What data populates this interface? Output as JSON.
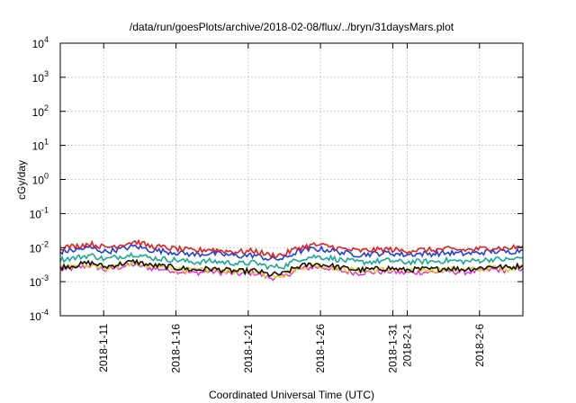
{
  "chart_data": {
    "type": "line",
    "title": "/data/run/goesPlots/archive/2018-02-08/flux/../bryn/31daysMars.plot",
    "xlabel": "Coordinated Universal Time (UTC)",
    "ylabel": "cGy/day",
    "yscale": "log",
    "ylim": [
      0.0001,
      10000
    ],
    "y_ticks": [
      {
        "base": "10",
        "exp": "-4"
      },
      {
        "base": "10",
        "exp": "-3"
      },
      {
        "base": "10",
        "exp": "-2"
      },
      {
        "base": "10",
        "exp": "-1"
      },
      {
        "base": "10",
        "exp": "0"
      },
      {
        "base": "10",
        "exp": "1"
      },
      {
        "base": "10",
        "exp": "2"
      },
      {
        "base": "10",
        "exp": "3"
      },
      {
        "base": "10",
        "exp": "4"
      }
    ],
    "xlim": [
      "2018-01-08",
      "2018-02-09"
    ],
    "x_ticks": [
      "2018-1-11",
      "2018-1-16",
      "2018-1-21",
      "2018-1-26",
      "2018-1-31",
      "2018-2-1",
      "2018-2-6"
    ],
    "grid": true,
    "series": [
      {
        "color": "#e0201c",
        "values": [
          0.01,
          0.011,
          0.013,
          0.01,
          0.012,
          0.015,
          0.011,
          0.01,
          0.009,
          0.008,
          0.009,
          0.008,
          0.0075,
          0.008,
          0.006,
          0.0062,
          0.01,
          0.012,
          0.011,
          0.009,
          0.008,
          0.0085,
          0.009,
          0.008,
          0.0085,
          0.0085,
          0.009,
          0.0085,
          0.009,
          0.01,
          0.0095,
          0.011
        ]
      },
      {
        "color": "#1f3fe0",
        "values": [
          0.0075,
          0.0085,
          0.01,
          0.0075,
          0.009,
          0.011,
          0.0085,
          0.0078,
          0.007,
          0.0062,
          0.0068,
          0.0062,
          0.0057,
          0.006,
          0.0046,
          0.0047,
          0.0078,
          0.0092,
          0.0085,
          0.007,
          0.0062,
          0.0066,
          0.007,
          0.0062,
          0.0066,
          0.0066,
          0.007,
          0.0066,
          0.007,
          0.0078,
          0.0074,
          0.0085
        ]
      },
      {
        "color": "#1aa89a",
        "values": [
          0.0045,
          0.005,
          0.006,
          0.0045,
          0.0055,
          0.0065,
          0.005,
          0.0046,
          0.0042,
          0.0037,
          0.004,
          0.0037,
          0.0034,
          0.0036,
          0.0027,
          0.0028,
          0.0046,
          0.0055,
          0.005,
          0.0042,
          0.0037,
          0.0039,
          0.0042,
          0.0037,
          0.0039,
          0.0039,
          0.0042,
          0.0039,
          0.0042,
          0.0046,
          0.0044,
          0.005
        ]
      },
      {
        "color": "#111111",
        "values": [
          0.0027,
          0.003,
          0.0036,
          0.0027,
          0.0033,
          0.0039,
          0.003,
          0.0028,
          0.0025,
          0.0022,
          0.0024,
          0.0022,
          0.002,
          0.0021,
          0.0016,
          0.0017,
          0.0028,
          0.0033,
          0.003,
          0.0025,
          0.0022,
          0.0023,
          0.0025,
          0.0022,
          0.0023,
          0.0023,
          0.0025,
          0.0023,
          0.0025,
          0.0028,
          0.0026,
          0.003
        ]
      },
      {
        "color": "#e6d21a",
        "values": [
          0.0025,
          0.0028,
          0.0033,
          0.0025,
          0.003,
          0.0036,
          0.0028,
          0.0026,
          0.0023,
          0.0021,
          0.0022,
          0.0021,
          0.0019,
          0.002,
          0.0015,
          0.0016,
          0.0026,
          0.003,
          0.0028,
          0.0023,
          0.0021,
          0.0022,
          0.0023,
          0.0021,
          0.0022,
          0.0022,
          0.0023,
          0.0022,
          0.0023,
          0.0026,
          0.0024,
          0.0028
        ]
      },
      {
        "color": "#ee18e0",
        "values": [
          0.0022,
          0.0025,
          0.003,
          0.0022,
          0.0027,
          0.0032,
          0.0025,
          0.0023,
          0.002,
          0.0018,
          0.002,
          0.0018,
          0.0017,
          0.0018,
          0.0013,
          0.0014,
          0.0023,
          0.0027,
          0.0025,
          0.002,
          0.0018,
          0.0019,
          0.002,
          0.0018,
          0.0019,
          0.0019,
          0.002,
          0.0019,
          0.002,
          0.0023,
          0.0021,
          0.0025
        ]
      }
    ]
  }
}
